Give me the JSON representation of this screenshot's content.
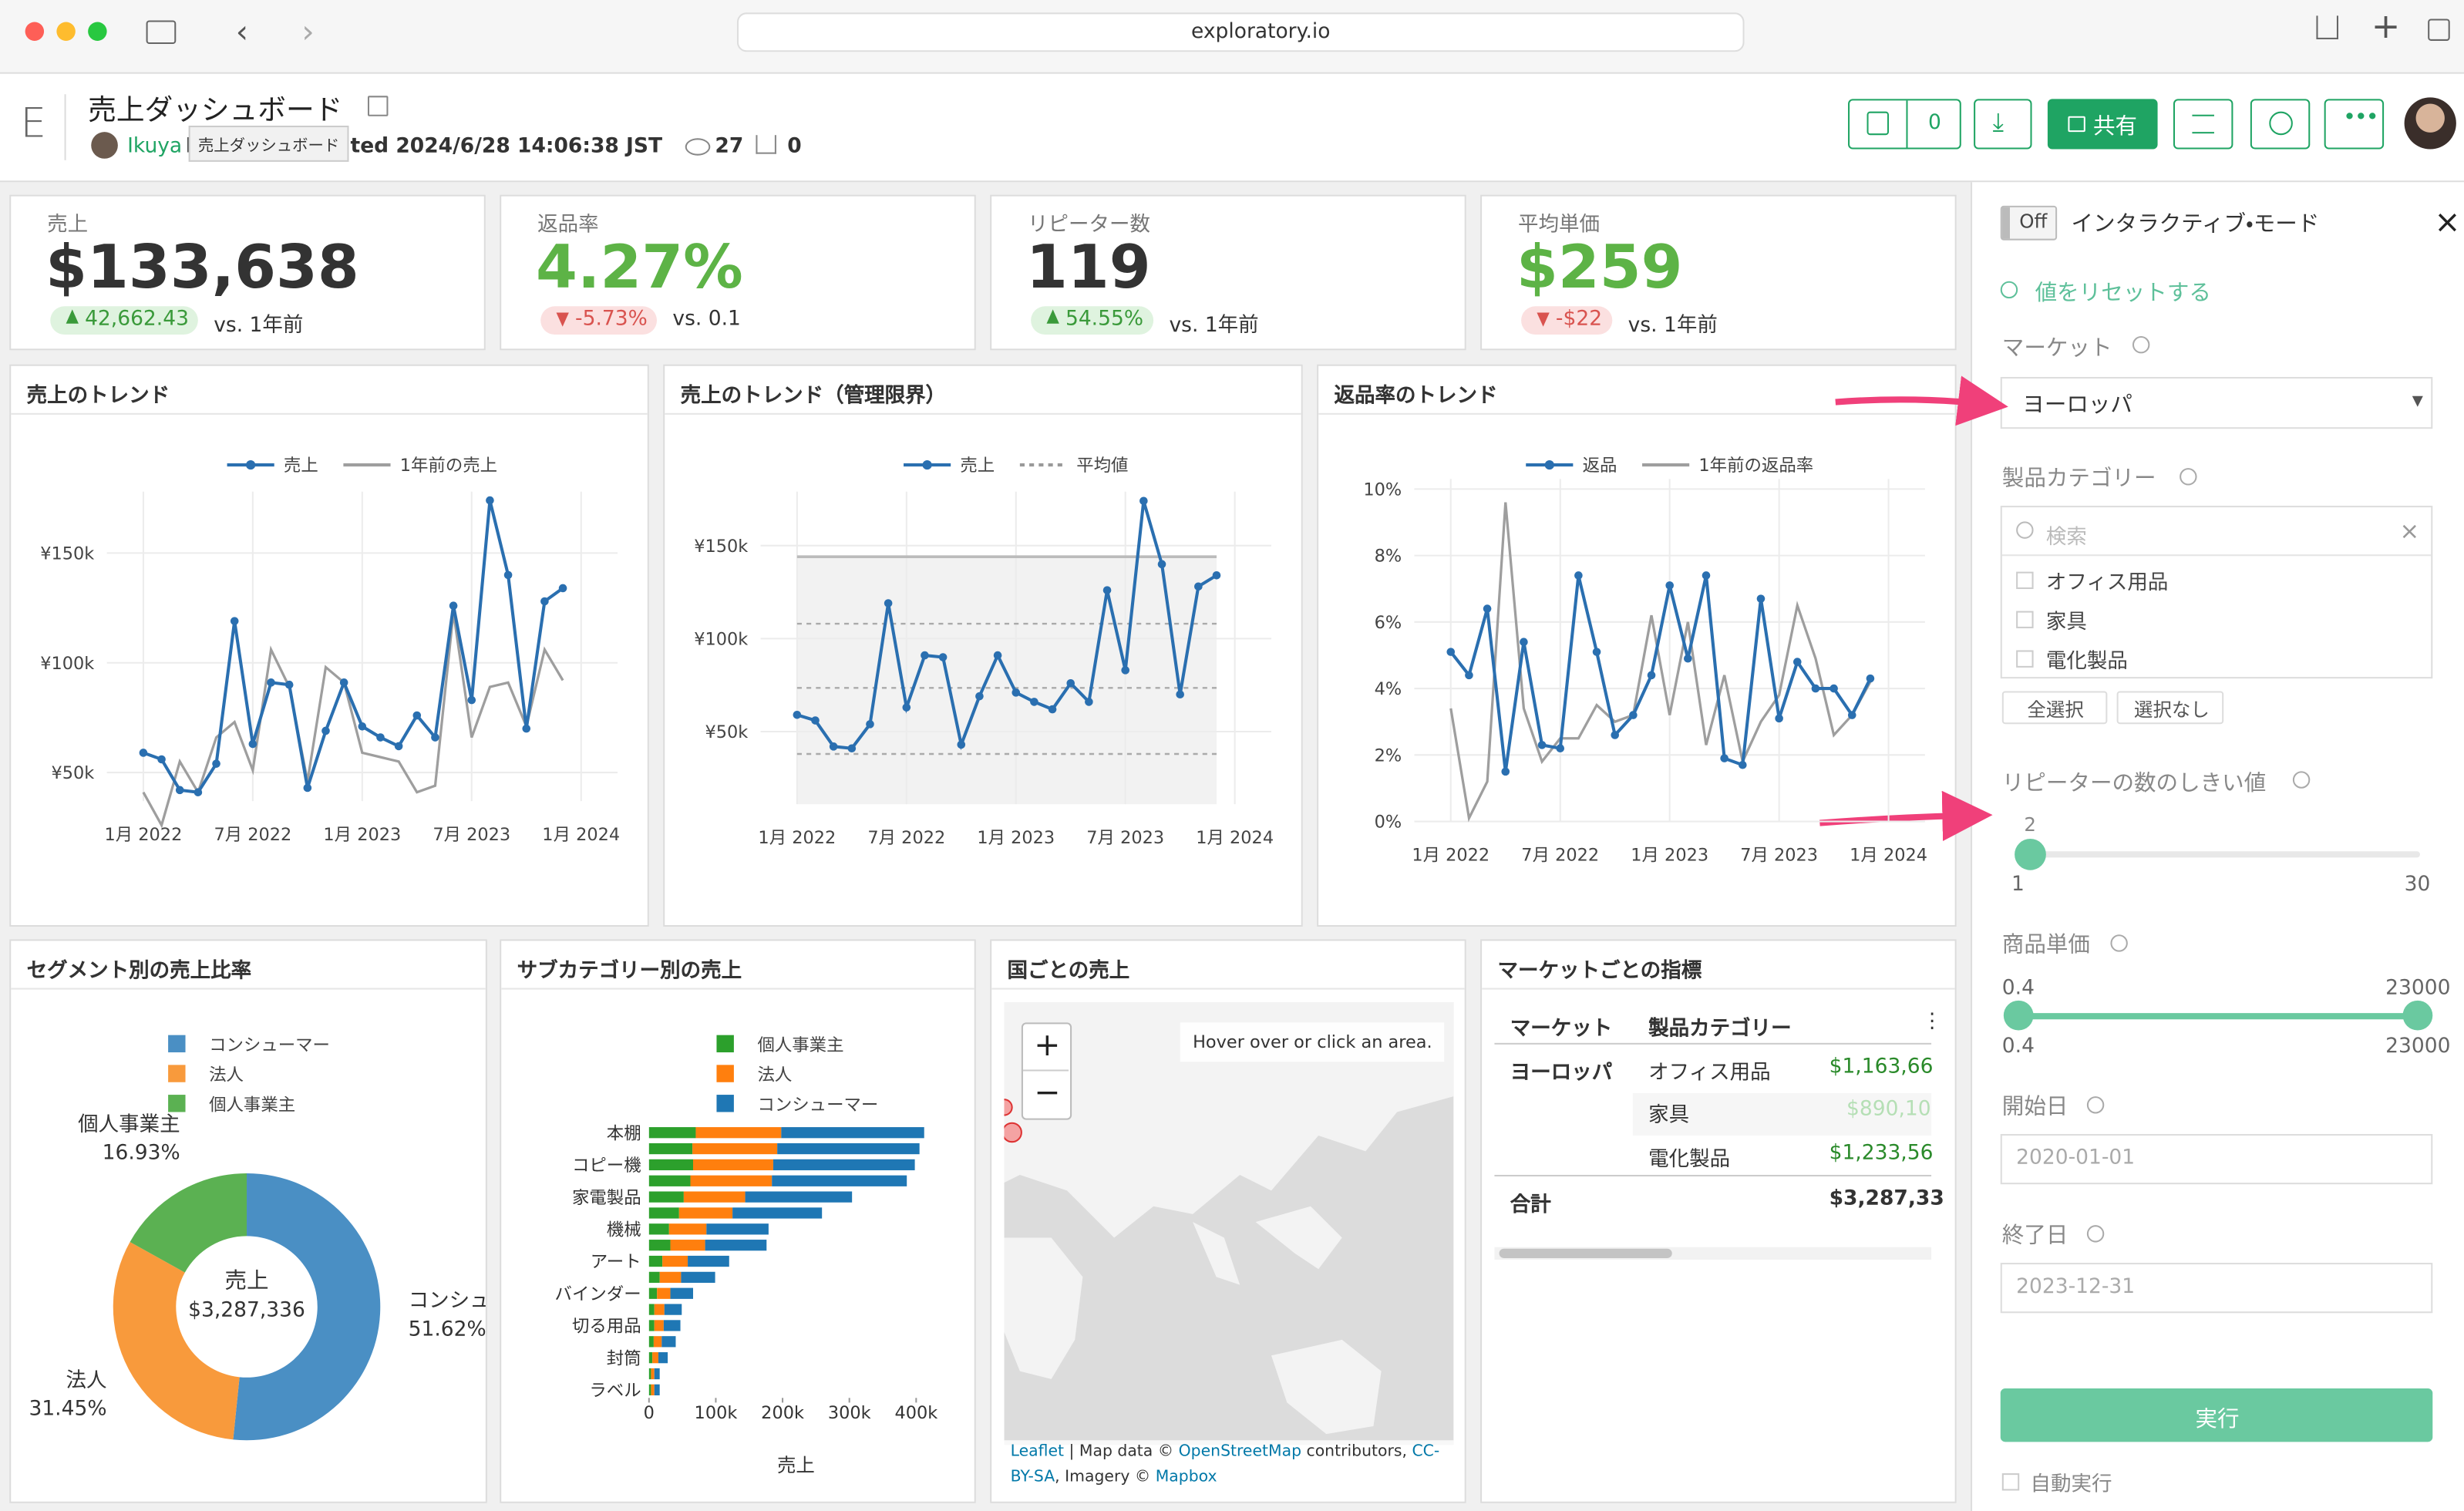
{
  "browser": {
    "url": "exploratory.io"
  },
  "header": {
    "logo": "E",
    "title": "売上ダッシュボード",
    "user": "Ikuya",
    "user_suffix": "I",
    "tooltip": "売上ダッシュボード",
    "updated": "ted 2024/6/28 14:06:38 JST",
    "views": "27",
    "forks": "0",
    "likes": "0",
    "share": "共有"
  },
  "kpis": [
    {
      "label": "売上",
      "value": "$133,638",
      "color": "#333333",
      "direction": "up",
      "change": "42,662.43",
      "compare": "vs. 1年前"
    },
    {
      "label": "返品率",
      "value": "4.27%",
      "color": "#5db346",
      "direction": "down",
      "change": "-5.73%",
      "compare": "vs. 0.1"
    },
    {
      "label": "リピーター数",
      "value": "119",
      "color": "#333333",
      "direction": "up",
      "change": "54.55%",
      "compare": "vs. 1年前"
    },
    {
      "label": "平均単価",
      "value": "$259",
      "color": "#5db346",
      "direction": "down",
      "change": "-$22",
      "compare": "vs. 1年前"
    }
  ],
  "chart_data": [
    {
      "type": "line",
      "title": "売上のトレンド",
      "x": [
        "2022-01",
        "2022-02",
        "2022-03",
        "2022-04",
        "2022-05",
        "2022-06",
        "2022-07",
        "2022-08",
        "2022-09",
        "2022-10",
        "2022-11",
        "2022-12",
        "2023-01",
        "2023-02",
        "2023-03",
        "2023-04",
        "2023-05",
        "2023-06",
        "2023-07",
        "2023-08",
        "2023-09",
        "2023-10",
        "2023-11",
        "2023-12"
      ],
      "series": [
        {
          "name": "売上",
          "color": "#2a6fb0",
          "markers": true,
          "values": [
            59000,
            56000,
            42000,
            41000,
            54000,
            119000,
            63000,
            91000,
            90000,
            43000,
            69000,
            91000,
            71000,
            66000,
            62000,
            76000,
            66000,
            126000,
            83000,
            174000,
            140000,
            70000,
            128000,
            134000
          ]
        },
        {
          "name": "1年前の売上",
          "color": "#9e9e9e",
          "markers": false,
          "values": [
            41000,
            26000,
            55000,
            41000,
            66000,
            73000,
            51000,
            106000,
            89000,
            46000,
            98000,
            91000,
            59000,
            57000,
            55000,
            41000,
            44000,
            123000,
            66000,
            89000,
            91000,
            71000,
            106000,
            92000
          ]
        }
      ],
      "xlim": [
        "2021-11",
        "2024-03"
      ],
      "xticks": [
        {
          "value": "2022-01",
          "label": "1月 2022"
        },
        {
          "value": "2022-07",
          "label": "7月 2022"
        },
        {
          "value": "2023-01",
          "label": "1月 2023"
        },
        {
          "value": "2023-07",
          "label": "7月 2023"
        },
        {
          "value": "2024-01",
          "label": "1月 2024"
        }
      ],
      "ylim": [
        37000,
        178000
      ],
      "yticks": [
        {
          "value": 50000,
          "label": "¥50k"
        },
        {
          "value": 100000,
          "label": "¥100k"
        },
        {
          "value": 150000,
          "label": "¥150k"
        }
      ],
      "grid": true
    },
    {
      "type": "line",
      "title": "売上のトレンド（管理限界）",
      "x": [
        "2022-01",
        "2022-02",
        "2022-03",
        "2022-04",
        "2022-05",
        "2022-06",
        "2022-07",
        "2022-08",
        "2022-09",
        "2022-10",
        "2022-11",
        "2022-12",
        "2023-01",
        "2023-02",
        "2023-03",
        "2023-04",
        "2023-05",
        "2023-06",
        "2023-07",
        "2023-08",
        "2023-09",
        "2023-10",
        "2023-11",
        "2023-12"
      ],
      "series": [
        {
          "name": "売上",
          "color": "#2a6fb0",
          "markers": true,
          "values": [
            59000,
            56000,
            42000,
            41000,
            54000,
            119000,
            63000,
            91000,
            90000,
            43000,
            69000,
            91000,
            71000,
            66000,
            62000,
            76000,
            66000,
            126000,
            83000,
            174000,
            140000,
            70000,
            128000,
            134000
          ]
        }
      ],
      "reference_lines": [
        {
          "value": 144000,
          "dash": false,
          "shade": true
        },
        {
          "value": 108000,
          "dash": true
        },
        {
          "name": "平均値",
          "value": 73500,
          "dash": true
        },
        {
          "value": 38000,
          "dash": true
        }
      ],
      "xlim": [
        "2021-11",
        "2024-03"
      ],
      "xticks": [
        {
          "value": "2022-01",
          "label": "1月 2022"
        },
        {
          "value": "2022-07",
          "label": "7月 2022"
        },
        {
          "value": "2023-01",
          "label": "1月 2023"
        },
        {
          "value": "2023-07",
          "label": "7月 2023"
        },
        {
          "value": "2024-01",
          "label": "1月 2024"
        }
      ],
      "ylim": [
        11000,
        179000
      ],
      "yticks": [
        {
          "value": 50000,
          "label": "¥50k"
        },
        {
          "value": 100000,
          "label": "¥100k"
        },
        {
          "value": 150000,
          "label": "¥150k"
        }
      ],
      "grid": true
    },
    {
      "type": "line",
      "title": "返品率のトレンド",
      "x": [
        "2022-01",
        "2022-02",
        "2022-03",
        "2022-04",
        "2022-05",
        "2022-06",
        "2022-07",
        "2022-08",
        "2022-09",
        "2022-10",
        "2022-11",
        "2022-12",
        "2023-01",
        "2023-02",
        "2023-03",
        "2023-04",
        "2023-05",
        "2023-06",
        "2023-07",
        "2023-08",
        "2023-09",
        "2023-10",
        "2023-11",
        "2023-12"
      ],
      "series": [
        {
          "name": "返品",
          "color": "#2a6fb0",
          "markers": true,
          "values": [
            5.1,
            4.4,
            6.4,
            1.5,
            5.4,
            2.3,
            2.2,
            7.4,
            5.1,
            2.6,
            3.2,
            4.4,
            7.1,
            4.9,
            7.4,
            1.9,
            1.7,
            6.7,
            3.1,
            4.8,
            4.0,
            4.0,
            3.2,
            4.3
          ]
        },
        {
          "name": "1年前の返品率",
          "color": "#9e9e9e",
          "markers": false,
          "values": [
            3.4,
            0.1,
            1.2,
            9.6,
            3.4,
            1.8,
            2.5,
            2.5,
            3.5,
            3.0,
            3.2,
            6.2,
            3.2,
            6.0,
            2.3,
            4.4,
            1.8,
            3.0,
            3.8,
            6.5,
            4.9,
            2.6,
            3.2,
            4.2
          ]
        }
      ],
      "xlim": [
        "2021-11",
        "2024-03"
      ],
      "xticks": [
        {
          "value": "2022-01",
          "label": "1月 2022"
        },
        {
          "value": "2022-07",
          "label": "7月 2022"
        },
        {
          "value": "2023-01",
          "label": "1月 2023"
        },
        {
          "value": "2023-07",
          "label": "7月 2023"
        },
        {
          "value": "2024-01",
          "label": "1月 2024"
        }
      ],
      "ylim": [
        0,
        10.3
      ],
      "yticks": [
        {
          "value": 0,
          "label": "0%"
        },
        {
          "value": 2,
          "label": "2%"
        },
        {
          "value": 4,
          "label": "4%"
        },
        {
          "value": 6,
          "label": "6%"
        },
        {
          "value": 8,
          "label": "8%"
        },
        {
          "value": 10,
          "label": "10%"
        }
      ],
      "grid": true
    },
    {
      "type": "pie",
      "title": "セグメント別の売上比率",
      "donut": true,
      "categories": [
        "コンシューマー",
        "法人",
        "個人事業主"
      ],
      "values": [
        51.62,
        31.45,
        16.93
      ],
      "value_labels": [
        "51.62%",
        "31.45%",
        "16.93%"
      ],
      "colors": [
        "#4a8fc4",
        "#f89a3c",
        "#5bb152"
      ],
      "center_label": "売上",
      "center_value": "$3,287,336"
    },
    {
      "type": "hbar_stacked",
      "title": "サブカテゴリー別の売上",
      "categories": [
        "本棚",
        null,
        "コピー機",
        null,
        "家電製品",
        null,
        "機械",
        null,
        "アート",
        null,
        "バインダー",
        null,
        "切る用品",
        null,
        "封筒",
        null,
        "ラベル"
      ],
      "series": [
        {
          "name": "個人事業主",
          "color": "#2ca02c",
          "values": [
            70000,
            65000,
            66000,
            62000,
            52000,
            45000,
            30000,
            32000,
            20000,
            16000,
            12000,
            8000,
            8000,
            7000,
            5000,
            3000,
            3000
          ]
        },
        {
          "name": "法人",
          "color": "#ff7f0e",
          "values": [
            128000,
            127000,
            120000,
            122000,
            92000,
            80000,
            56000,
            52000,
            38000,
            32000,
            20000,
            15000,
            14000,
            12000,
            9000,
            5000,
            5000
          ]
        },
        {
          "name": "コンシューマー",
          "color": "#1f77b4",
          "values": [
            214000,
            213000,
            212000,
            202000,
            160000,
            134000,
            93000,
            92000,
            62000,
            51000,
            34000,
            26000,
            25000,
            21000,
            14000,
            8000,
            8000
          ]
        }
      ],
      "xlabel": "売上",
      "xlim": [
        0,
        440000
      ],
      "xticks": [
        0,
        {
          "value": 100000,
          "label": "100k"
        },
        {
          "value": 200000,
          "label": "200k"
        },
        {
          "value": 300000,
          "label": "300k"
        },
        {
          "value": 400000,
          "label": "400k"
        }
      ]
    }
  ],
  "map": {
    "title": "国ごとの売上",
    "hint": "Hover over or click an area.",
    "zoom_in": "+",
    "zoom_out": "−",
    "attribution": {
      "leaflet": "Leaflet",
      "sep": " | Map data © ",
      "osm": "OpenStreetMap",
      "contrib": " contributors, ",
      "cc1": "CC-",
      "cc2": "BY-SA",
      "imagery": ", Imagery © ",
      "mapbox": "Mapbox"
    }
  },
  "table": {
    "title": "マーケットごとの指標",
    "headers": [
      "マーケット",
      "製品カテゴリー"
    ],
    "rows": [
      [
        "ヨーロッパ",
        "オフィス用品",
        "$1,163,66"
      ],
      [
        "",
        "家具",
        "$890,10"
      ],
      [
        "",
        "電化製品",
        "$1,233,56"
      ]
    ],
    "total": [
      "合計",
      "$3,287,33"
    ]
  },
  "panel": {
    "toggle": "Off",
    "mode": "インタラクティブ・モード",
    "reset": "値をリセットする",
    "market_label": "マーケット",
    "market_value": "ヨーロッパ",
    "category_label": "製品カテゴリー",
    "search": "検索",
    "options": [
      "オフィス用品",
      "家具",
      "電化製品"
    ],
    "select_all": "全選択",
    "select_none": "選択なし",
    "repeat_label": "リピーターの数のしきい値",
    "repeat_value": "2",
    "repeat_min": "1",
    "repeat_max": "30",
    "price_label": "商品単価",
    "price_low": "0.4",
    "price_high": "23000",
    "start_label": "開始日",
    "start_value": "2020-01-01",
    "end_label": "終了日",
    "end_value": "2023-12-31",
    "run": "実行",
    "auto_run": "自動実行"
  }
}
